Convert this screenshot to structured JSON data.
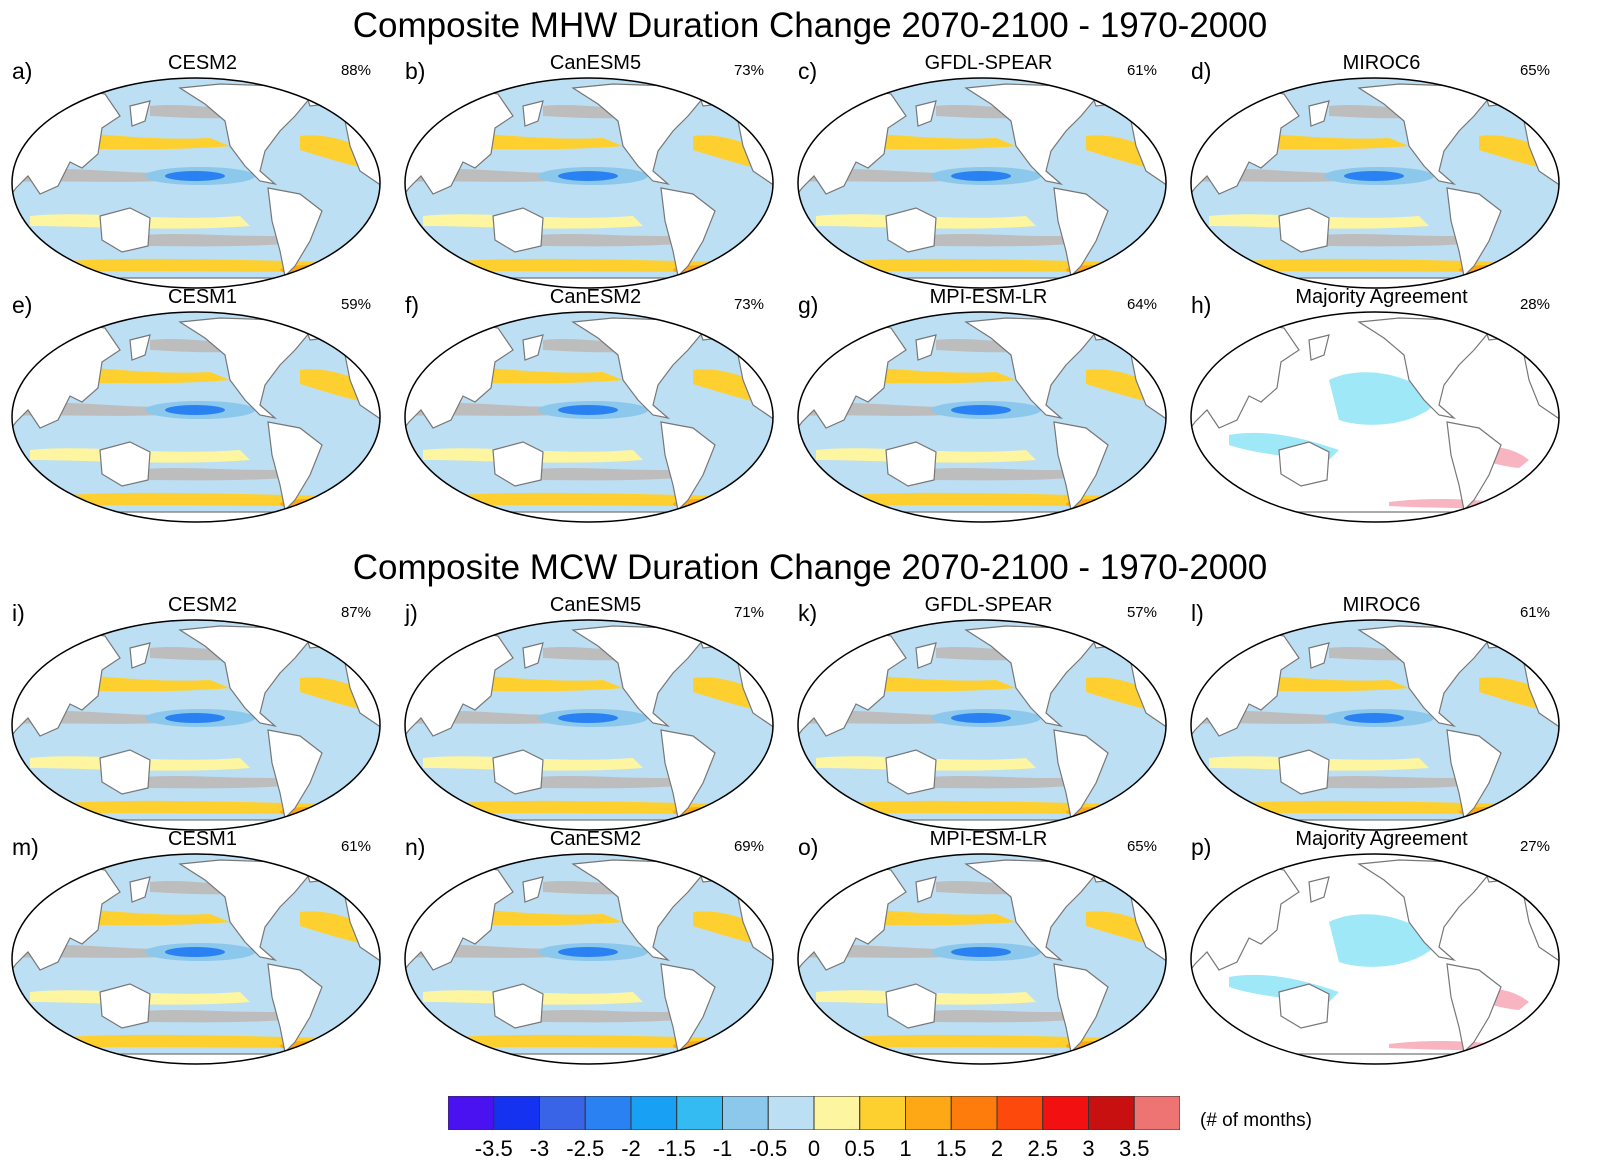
{
  "sections": [
    {
      "title": "Composite MHW Duration Change 2070-2100 - 1970-2000"
    },
    {
      "title": "Composite MCW Duration Change 2070-2100 - 1970-2000"
    }
  ],
  "panels": [
    {
      "letter": "a)",
      "model": "CESM2",
      "percent": "88%",
      "kind": "model"
    },
    {
      "letter": "b)",
      "model": "CanESM5",
      "percent": "73%",
      "kind": "model"
    },
    {
      "letter": "c)",
      "model": "GFDL-SPEAR",
      "percent": "61%",
      "kind": "model"
    },
    {
      "letter": "d)",
      "model": "MIROC6",
      "percent": "65%",
      "kind": "model"
    },
    {
      "letter": "e)",
      "model": "CESM1",
      "percent": "59%",
      "kind": "model"
    },
    {
      "letter": "f)",
      "model": "CanESM2",
      "percent": "73%",
      "kind": "model"
    },
    {
      "letter": "g)",
      "model": "MPI-ESM-LR",
      "percent": "64%",
      "kind": "model"
    },
    {
      "letter": "h)",
      "model": "Majority Agreement",
      "percent": "28%",
      "kind": "agreement"
    },
    {
      "letter": "i)",
      "model": "CESM2",
      "percent": "87%",
      "kind": "model"
    },
    {
      "letter": "j)",
      "model": "CanESM5",
      "percent": "71%",
      "kind": "model"
    },
    {
      "letter": "k)",
      "model": "GFDL-SPEAR",
      "percent": "57%",
      "kind": "model"
    },
    {
      "letter": "l)",
      "model": "MIROC6",
      "percent": "61%",
      "kind": "model"
    },
    {
      "letter": "m)",
      "model": "CESM1",
      "percent": "61%",
      "kind": "model"
    },
    {
      "letter": "n)",
      "model": "CanESM2",
      "percent": "69%",
      "kind": "model"
    },
    {
      "letter": "o)",
      "model": "MPI-ESM-LR",
      "percent": "65%",
      "kind": "model"
    },
    {
      "letter": "p)",
      "model": "Majority Agreement",
      "percent": "27%",
      "kind": "agreement"
    }
  ],
  "colorbar": {
    "units": "(# of months)",
    "tick_labels": [
      "-3.5",
      "-3",
      "-2.5",
      "-2",
      "-1.5",
      "-1",
      "-0.5",
      "0",
      "0.5",
      "1",
      "1.5",
      "2",
      "2.5",
      "3",
      "3.5"
    ],
    "colors": [
      "#4a12f0",
      "#1432f0",
      "#3a64e8",
      "#2a82f2",
      "#18a0f5",
      "#34bcf2",
      "#8cc8ec",
      "#bcdff4",
      "#fdf5a0",
      "#fdd030",
      "#fda814",
      "#fd7c0c",
      "#fd4a0c",
      "#f21010",
      "#c81010",
      "#ee7474"
    ]
  },
  "map_colors": {
    "ocean_base": "#bcdff4",
    "neutral": "#bdbdbd",
    "positive_low": "#fdf5a0",
    "positive": "#fdd030",
    "positive_high": "#fda814",
    "negative": "#8cc8ec",
    "negative_high": "#2a82f2",
    "agreement_negative": "#9ee8f8",
    "agreement_positive": "#f8b4c0",
    "land": "#ffffff",
    "coast": "#777777"
  }
}
